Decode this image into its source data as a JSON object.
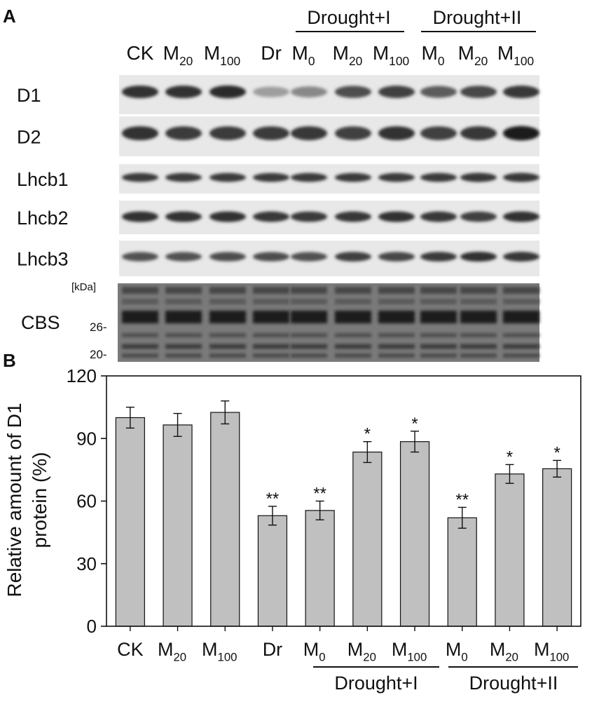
{
  "panel_a": {
    "label": "A",
    "group_labels": [
      "Drought+I",
      "Drought+II"
    ],
    "lanes": [
      {
        "main": "CK",
        "sub": ""
      },
      {
        "main": "M",
        "sub": "20"
      },
      {
        "main": "M",
        "sub": "100"
      },
      {
        "main": "Dr",
        "sub": ""
      },
      {
        "main": "M",
        "sub": "0"
      },
      {
        "main": "M",
        "sub": "20"
      },
      {
        "main": "M",
        "sub": "100"
      },
      {
        "main": "M",
        "sub": "0"
      },
      {
        "main": "M",
        "sub": "20"
      },
      {
        "main": "M",
        "sub": "100"
      }
    ],
    "rows": [
      {
        "label": "D1",
        "intensity": [
          0.85,
          0.85,
          0.88,
          0.35,
          0.45,
          0.72,
          0.78,
          0.65,
          0.75,
          0.82
        ]
      },
      {
        "label": "D2",
        "intensity": [
          0.85,
          0.8,
          0.8,
          0.8,
          0.82,
          0.78,
          0.85,
          0.78,
          0.82,
          0.95
        ]
      },
      {
        "label": "Lhcb1",
        "intensity": [
          0.8,
          0.8,
          0.8,
          0.8,
          0.8,
          0.8,
          0.8,
          0.8,
          0.82,
          0.82
        ]
      },
      {
        "label": "Lhcb2",
        "intensity": [
          0.85,
          0.85,
          0.85,
          0.82,
          0.8,
          0.82,
          0.85,
          0.82,
          0.78,
          0.85
        ]
      },
      {
        "label": "Lhcb3",
        "intensity": [
          0.7,
          0.7,
          0.72,
          0.72,
          0.7,
          0.78,
          0.75,
          0.8,
          0.85,
          0.82
        ]
      }
    ],
    "cbs": {
      "label": "CBS",
      "unit": "[kDa]",
      "markers": [
        "26-",
        "20-"
      ]
    }
  },
  "panel_b": {
    "label": "B",
    "group_labels": [
      "Drought+I",
      "Drought+II"
    ]
  },
  "chart_data": {
    "type": "bar",
    "categories": [
      "CK",
      "M20",
      "M100",
      "Dr",
      "M0",
      "M20",
      "M100",
      "M0",
      "M20",
      "M100"
    ],
    "category_labels": [
      {
        "main": "CK",
        "sub": ""
      },
      {
        "main": "M",
        "sub": "20"
      },
      {
        "main": "M",
        "sub": "100"
      },
      {
        "main": "Dr",
        "sub": ""
      },
      {
        "main": "M",
        "sub": "0"
      },
      {
        "main": "M",
        "sub": "20"
      },
      {
        "main": "M",
        "sub": "100"
      },
      {
        "main": "M",
        "sub": "0"
      },
      {
        "main": "M",
        "sub": "20"
      },
      {
        "main": "M",
        "sub": "100"
      }
    ],
    "values": [
      100,
      96.5,
      102.5,
      53,
      55.5,
      83.5,
      88.5,
      52,
      73,
      75.5
    ],
    "errors": [
      5,
      5.5,
      5.5,
      4.5,
      4.5,
      5,
      5,
      5,
      4.5,
      4
    ],
    "significance": [
      "",
      "",
      "",
      "**",
      "**",
      "*",
      "*",
      "**",
      "*",
      "*"
    ],
    "ylabel": [
      "Relative amount of D1",
      "protein (%)"
    ],
    "xlabel": "",
    "ylim": [
      0,
      120
    ],
    "yticks": [
      0,
      30,
      60,
      90,
      120
    ],
    "bar_color": "#c0c0c0",
    "groups": [
      {
        "name": "Drought+I",
        "indices": [
          4,
          5,
          6
        ]
      },
      {
        "name": "Drought+II",
        "indices": [
          7,
          8,
          9
        ]
      }
    ]
  }
}
